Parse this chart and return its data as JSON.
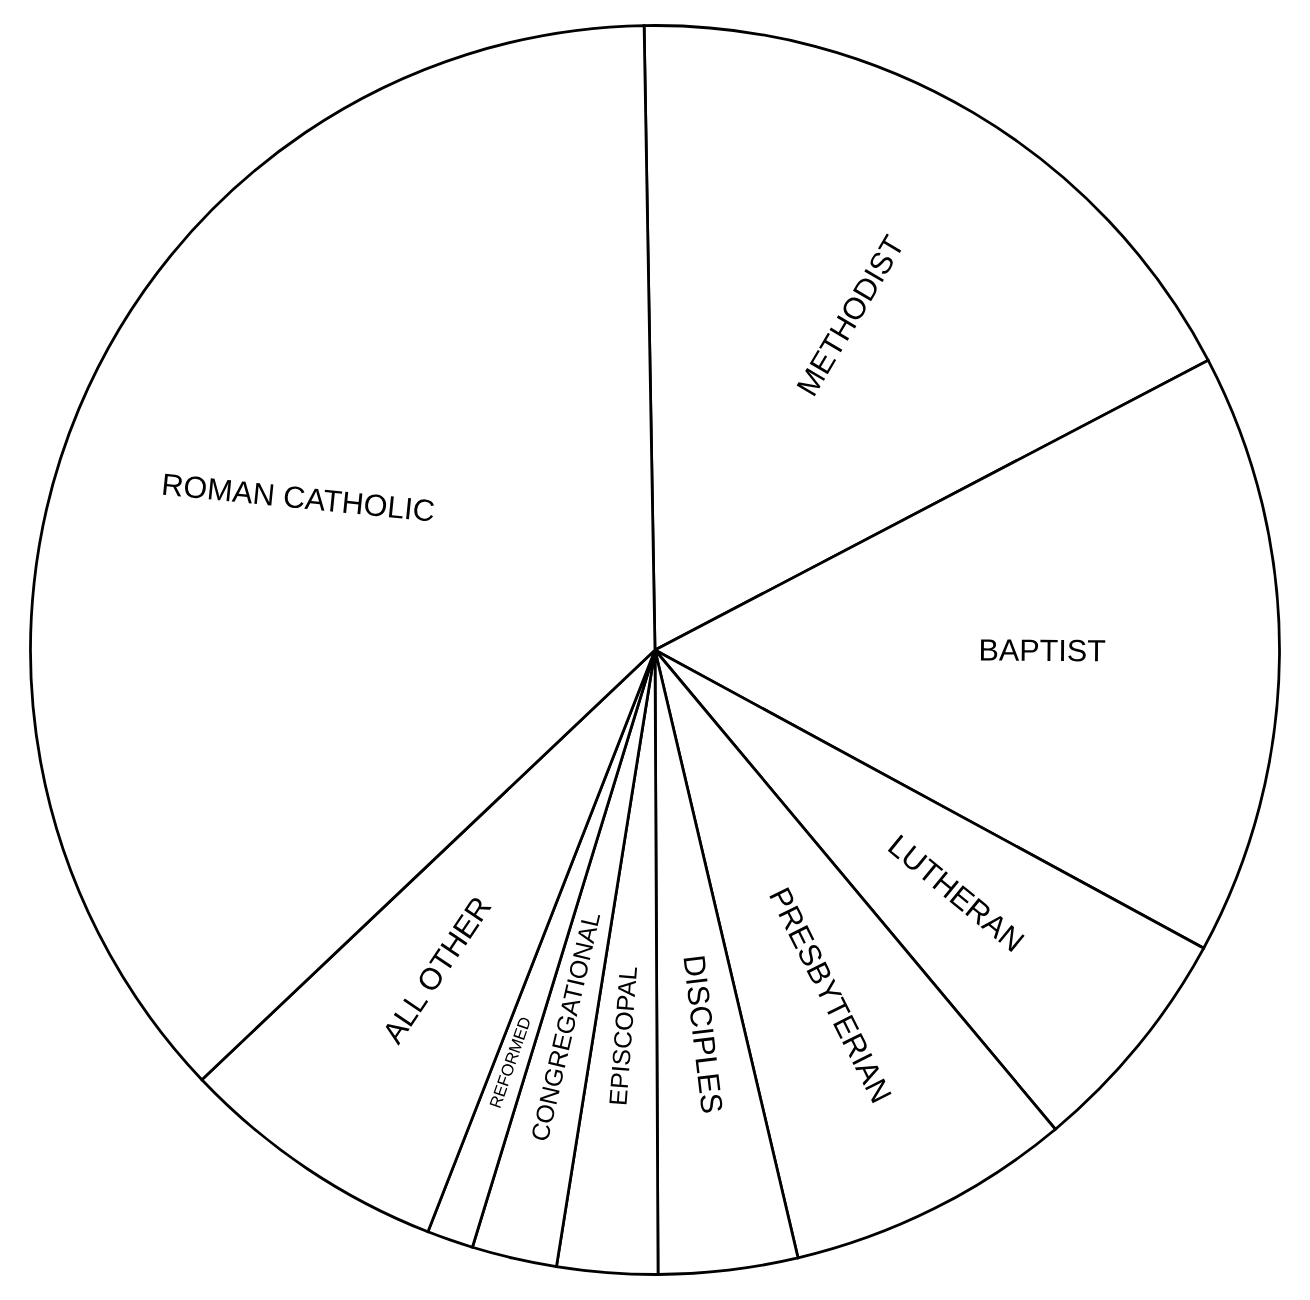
{
  "chart_data": {
    "type": "pie",
    "categories": [
      "METHODIST",
      "BAPTIST",
      "LUTHERAN",
      "PRESBYTERIAN",
      "DISCIPLES",
      "EPISCOPAL",
      "CONGREGATIONAL",
      "REFORMED",
      "ALL OTHER",
      "ROMAN CATHOLIC"
    ],
    "values": [
      17.6,
      15.6,
      6.0,
      7.4,
      3.6,
      2.6,
      2.2,
      1.2,
      7.0,
      36.8
    ],
    "colors": [
      "#ffffff",
      "#ffffff",
      "#ffffff",
      "#ffffff",
      "#ffffff",
      "#ffffff",
      "#ffffff",
      "#ffffff",
      "#ffffff",
      "#ffffff"
    ]
  }
}
